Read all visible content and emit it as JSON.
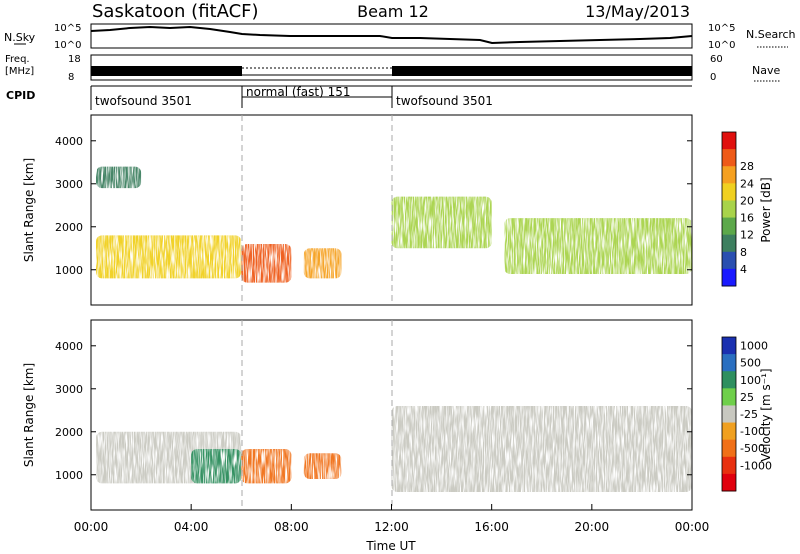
{
  "header": {
    "station": "Saskatoon (fitACF)",
    "beam": "Beam 12",
    "date": "13/May/2013"
  },
  "strip_panels": {
    "nsky": {
      "label": "N.Sky",
      "right_label": "N.Search",
      "left_ticks": [
        "10^5",
        "10^0"
      ],
      "right_ticks": [
        "10^5",
        "10^0"
      ]
    },
    "freq": {
      "label_line1": "Freq.",
      "label_line2": "[MHz]",
      "left_ticks": [
        "18",
        "8"
      ],
      "right_label": "Nave",
      "right_ticks": [
        "60",
        "0"
      ]
    },
    "cpid": {
      "label": "CPID",
      "segments": [
        {
          "label": "twofsound 3501",
          "start_hour": 0,
          "end_hour": 6
        },
        {
          "label": "normal (fast) 151",
          "start_hour": 6,
          "end_hour": 12
        },
        {
          "label": "twofsound 3501",
          "start_hour": 12,
          "end_hour": 24
        }
      ]
    }
  },
  "chart_data": [
    {
      "type": "heatmap",
      "quantity": "Power",
      "ylabel": "Slant Range [km]",
      "xlim_hours": [
        0,
        24
      ],
      "ylim": [
        180,
        4600
      ],
      "yticks": [
        1000,
        2000,
        3000,
        4000
      ],
      "colorbar": {
        "label": "Power [dB]",
        "ticks": [
          "4",
          "8",
          "12",
          "16",
          "20",
          "24",
          "28"
        ],
        "colors": [
          "#1a1aff",
          "#2a4fb0",
          "#3d7f5f",
          "#5ca84a",
          "#a8d34a",
          "#f0d020",
          "#f5a020",
          "#ee5a18",
          "#e0100e"
        ]
      },
      "regions": [
        {
          "start_hour": 0.2,
          "end_hour": 6.0,
          "range_min": 800,
          "range_max": 1800,
          "value": 20
        },
        {
          "start_hour": 6.0,
          "end_hour": 8.0,
          "range_min": 700,
          "range_max": 1600,
          "value": 28
        },
        {
          "start_hour": 8.5,
          "end_hour": 10.0,
          "range_min": 800,
          "range_max": 1500,
          "value": 26
        },
        {
          "start_hour": 12.0,
          "end_hour": 16.0,
          "range_min": 1500,
          "range_max": 2700,
          "value": 18
        },
        {
          "start_hour": 16.5,
          "end_hour": 24.0,
          "range_min": 900,
          "range_max": 2200,
          "value": 16
        },
        {
          "start_hour": 0.2,
          "end_hour": 2.0,
          "range_min": 2900,
          "range_max": 3400,
          "value": 8
        }
      ]
    },
    {
      "type": "heatmap",
      "quantity": "Velocity",
      "ylabel": "Slant Range [km]",
      "xlabel": "Time UT",
      "xlim_hours": [
        0,
        24
      ],
      "ylim": [
        180,
        4600
      ],
      "yticks": [
        1000,
        2000,
        3000,
        4000
      ],
      "xticks": [
        "00:00",
        "04:00",
        "08:00",
        "12:00",
        "16:00",
        "20:00",
        "00:00"
      ],
      "colorbar": {
        "label": "Velocity [m s⁻¹]",
        "ticks": [
          "1000",
          "500",
          "100",
          "25",
          "-25",
          "-100",
          "-500",
          "-1000"
        ],
        "colors": [
          "#1a30b0",
          "#2a6fc0",
          "#2e8f5f",
          "#6fcf4a",
          "#c8c8c0",
          "#f0a020",
          "#f07018",
          "#e83010",
          "#e0000e"
        ]
      },
      "regions": [
        {
          "start_hour": 0.2,
          "end_hour": 6.0,
          "range_min": 800,
          "range_max": 2000,
          "value": 0
        },
        {
          "start_hour": 4.0,
          "end_hour": 6.0,
          "range_min": 800,
          "range_max": 1600,
          "value": 100
        },
        {
          "start_hour": 6.0,
          "end_hour": 8.0,
          "range_min": 800,
          "range_max": 1600,
          "value": -300
        },
        {
          "start_hour": 8.5,
          "end_hour": 10.0,
          "range_min": 900,
          "range_max": 1500,
          "value": -300
        },
        {
          "start_hour": 12.0,
          "end_hour": 24.0,
          "range_min": 600,
          "range_max": 2600,
          "value": 0
        }
      ]
    }
  ]
}
